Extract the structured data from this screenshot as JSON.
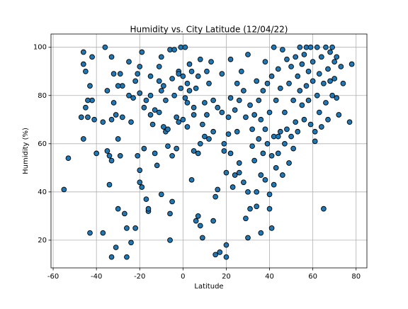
{
  "chart_data": {
    "type": "scatter",
    "title": "Humidity vs. City Latitude (12/04/22)",
    "x_label": "Latitude",
    "y_label": "Humidity (%)",
    "color": "#1f77b4",
    "edgecolor": "#000000",
    "grid": true,
    "xlim": [
      -61,
      85
    ],
    "ylim": [
      8.5,
      105.5
    ],
    "xticks": [
      -60,
      -40,
      -20,
      0,
      20,
      40,
      60,
      80
    ],
    "yticks": [
      20,
      40,
      60,
      80,
      100
    ],
    "x": [
      -55,
      -53,
      -47,
      -46,
      -46,
      -45,
      -45,
      -44,
      -43,
      -43,
      -42,
      -42,
      -41,
      -40,
      -46,
      -44,
      -37,
      -37,
      -36,
      -35,
      -35,
      -34,
      -34,
      -33,
      -33,
      -33,
      -33,
      -32,
      -32,
      -31,
      -31,
      -30,
      -30,
      -29,
      -29,
      -28,
      -28,
      -27,
      -26,
      -26,
      -25,
      -24,
      -24,
      -23,
      -22,
      -22,
      -21,
      -21,
      -20,
      -20,
      -20,
      -20,
      -19,
      -19,
      -18,
      -17,
      -17,
      -16,
      -16,
      -15,
      -15,
      -15,
      -14,
      -13,
      -13,
      -12,
      -11,
      -11,
      -11,
      -10,
      -10,
      -10,
      -9,
      -9,
      -8,
      -8,
      -7,
      -7,
      -6,
      -6,
      -6,
      -5,
      -5,
      -5,
      -4,
      -4,
      -3,
      -3,
      -2,
      -2,
      -1,
      -1,
      0,
      0,
      1,
      1,
      2,
      2,
      3,
      3,
      4,
      4,
      5,
      5,
      5,
      6,
      6,
      7,
      7,
      7,
      8,
      8,
      9,
      9,
      10,
      10,
      11,
      11,
      12,
      12,
      13,
      14,
      14,
      15,
      15,
      16,
      16,
      17,
      18,
      18,
      19,
      19,
      20,
      20,
      20,
      21,
      21,
      22,
      22,
      22,
      23,
      24,
      24,
      25,
      25,
      26,
      26,
      27,
      28,
      28,
      29,
      29,
      30,
      30,
      30,
      31,
      31,
      32,
      32,
      33,
      33,
      34,
      34,
      35,
      35,
      36,
      36,
      36,
      37,
      37,
      38,
      38,
      39,
      39,
      40,
      40,
      40,
      41,
      41,
      41,
      42,
      42,
      42,
      43,
      43,
      44,
      44,
      45,
      45,
      46,
      46,
      47,
      47,
      48,
      48,
      49,
      49,
      50,
      50,
      51,
      51,
      52,
      52,
      53,
      53,
      54,
      54,
      55,
      55,
      56,
      56,
      57,
      57,
      58,
      58,
      59,
      59,
      60,
      60,
      61,
      61,
      62,
      62,
      63,
      63,
      64,
      64,
      65,
      65,
      66,
      66,
      67,
      67,
      68,
      68,
      69,
      69,
      70,
      70,
      71,
      71,
      72,
      73,
      74,
      77,
      78,
      14,
      8,
      2,
      -2,
      -25,
      -30,
      -18,
      26,
      38,
      44,
      34
    ],
    "values": [
      41,
      54,
      71,
      93,
      98,
      90,
      75,
      71,
      84,
      23,
      96,
      78,
      70,
      56,
      62,
      78,
      23,
      69,
      100,
      82,
      57,
      55,
      43,
      96,
      13,
      53,
      70,
      89,
      77,
      17,
      72,
      33,
      62,
      55,
      89,
      71,
      84,
      31,
      25,
      13,
      94,
      69,
      19,
      79,
      25,
      86,
      89,
      55,
      92,
      81,
      49,
      44,
      42,
      98,
      58,
      78,
      37,
      32,
      33,
      88,
      72,
      80,
      68,
      74,
      56,
      51,
      86,
      92,
      73,
      96,
      82,
      39,
      67,
      84,
      65,
      78,
      59,
      66,
      99,
      31,
      20,
      55,
      36,
      87,
      99,
      80,
      71,
      58,
      90,
      69,
      100,
      83,
      88,
      70,
      100,
      79,
      77,
      67,
      93,
      82,
      45,
      90,
      75,
      57,
      72,
      83,
      28,
      88,
      30,
      56,
      95,
      26,
      68,
      21,
      77,
      63,
      90,
      72,
      62,
      85,
      94,
      78,
      65,
      14,
      38,
      75,
      41,
      15,
      73,
      89,
      60,
      57,
      13,
      48,
      18,
      71,
      64,
      95,
      56,
      79,
      42,
      74,
      47,
      65,
      85,
      78,
      48,
      90,
      44,
      82,
      71,
      29,
      21,
      40,
      97,
      33,
      76,
      66,
      59,
      53,
      72,
      34,
      86,
      62,
      78,
      23,
      70,
      47,
      56,
      82,
      94,
      45,
      85,
      60,
      33,
      39,
      73,
      55,
      25,
      88,
      43,
      100,
      63,
      50,
      78,
      56,
      91,
      65,
      83,
      47,
      99,
      60,
      73,
      95,
      66,
      85,
      52,
      63,
      92,
      78,
      58,
      96,
      69,
      88,
      65,
      100,
      82,
      76,
      93,
      70,
      97,
      100,
      84,
      90,
      78,
      100,
      68,
      94,
      86,
      65,
      61,
      100,
      80,
      89,
      73,
      96,
      67,
      33,
      85,
      100,
      77,
      91,
      70,
      98,
      86,
      100,
      80,
      94,
      87,
      96,
      79,
      72,
      92,
      85,
      69,
      93,
      28,
      60,
      85,
      89,
      80,
      84,
      75,
      52,
      66,
      63,
      40
    ]
  }
}
